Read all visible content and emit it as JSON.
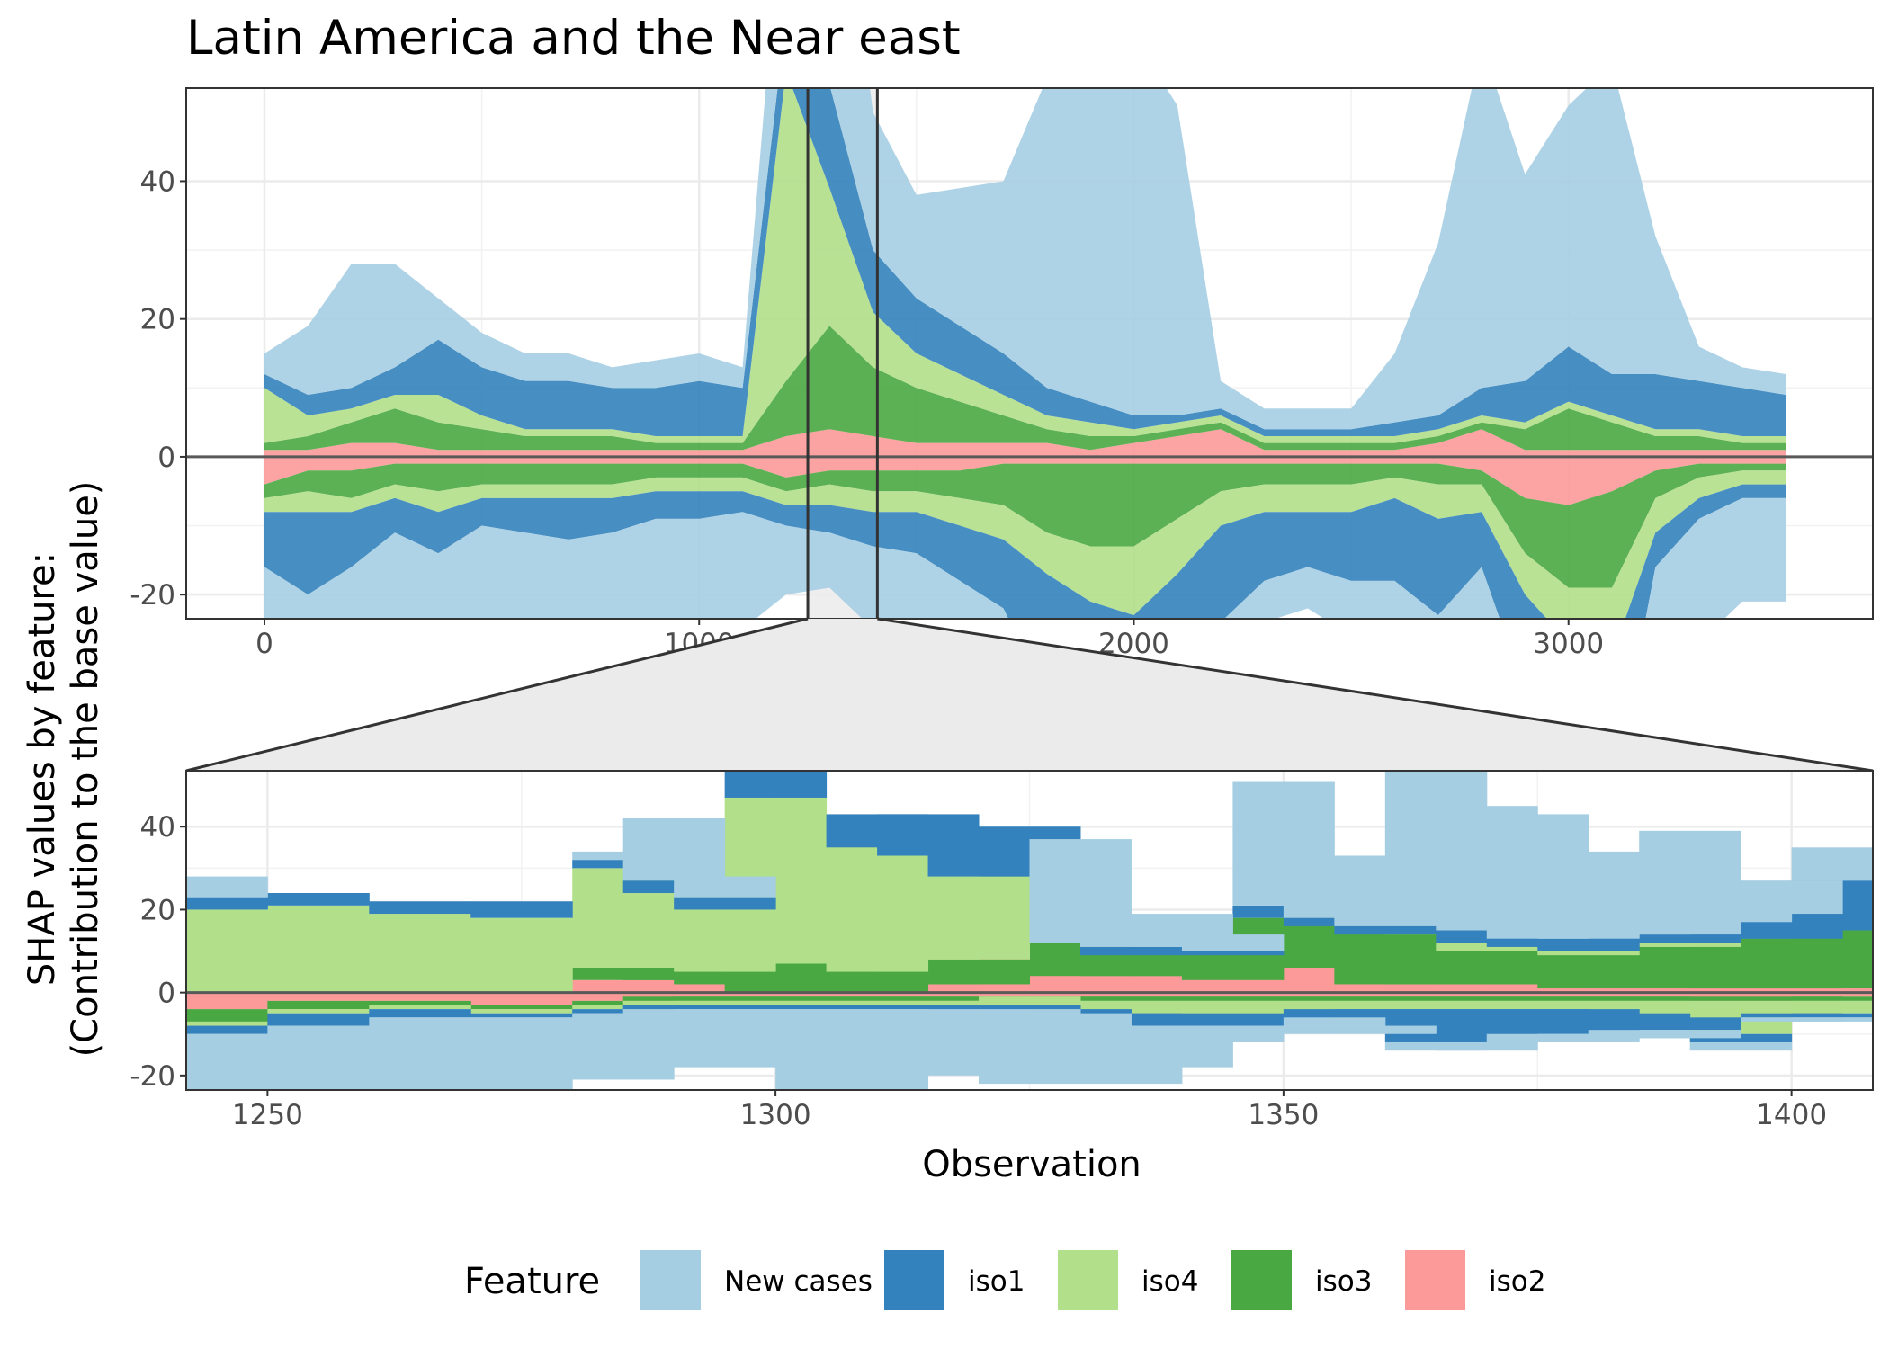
{
  "chart_data": [
    {
      "type": "area",
      "panel": "overview",
      "title": "Latin America and the Near east",
      "xlabel": "",
      "ylabel": "SHAP values by feature:\n(Contribution to the base value)",
      "xlim": [
        -180,
        3700
      ],
      "ylim": [
        -23.5,
        53.5
      ],
      "xticks": [
        0,
        1000,
        2000,
        3000
      ],
      "yticks": [
        -20,
        0,
        20,
        40
      ],
      "grid": true,
      "baseline": 0,
      "zoom_window": [
        1250,
        1410
      ],
      "series": [
        {
          "name": "New cases",
          "color": "#a6cee3",
          "x": [
            0,
            100,
            200,
            300,
            400,
            500,
            600,
            700,
            800,
            900,
            1000,
            1100,
            1200,
            1300,
            1400,
            1500,
            1600,
            1700,
            1800,
            1900,
            2000,
            2100,
            2200,
            2300,
            2400,
            2500,
            2600,
            2700,
            2800,
            2900,
            3000,
            3100,
            3200,
            3300,
            3400,
            3500
          ],
          "pos": [
            3,
            10,
            18,
            15,
            6,
            5,
            4,
            4,
            3,
            4,
            4,
            3,
            25,
            45,
            20,
            15,
            20,
            25,
            45,
            50,
            55,
            45,
            4,
            3,
            3,
            3,
            10,
            25,
            50,
            30,
            35,
            45,
            20,
            5,
            3,
            3
          ],
          "neg": [
            -20,
            -22,
            -20,
            -18,
            -16,
            -20,
            -15,
            -18,
            -16,
            -20,
            -18,
            -17,
            -10,
            -8,
            -12,
            -15,
            -12,
            -20,
            -22,
            -20,
            -18,
            -18,
            -8,
            -6,
            -6,
            -8,
            -8,
            -10,
            -12,
            -20,
            -22,
            -18,
            -20,
            -18,
            -15,
            -15
          ]
        },
        {
          "name": "iso1",
          "color": "#3382bd",
          "x": [
            0,
            100,
            200,
            300,
            400,
            500,
            600,
            700,
            800,
            900,
            1000,
            1100,
            1200,
            1300,
            1400,
            1500,
            1600,
            1700,
            1800,
            1900,
            2000,
            2100,
            2200,
            2300,
            2400,
            2500,
            2600,
            2700,
            2800,
            2900,
            3000,
            3100,
            3200,
            3300,
            3400,
            3500
          ],
          "pos": [
            2,
            3,
            3,
            4,
            8,
            7,
            7,
            7,
            6,
            7,
            8,
            7,
            8,
            15,
            9,
            8,
            7,
            6,
            4,
            3,
            2,
            1,
            1,
            1,
            1,
            1,
            2,
            2,
            4,
            6,
            8,
            6,
            8,
            7,
            7,
            6
          ],
          "neg": [
            -8,
            -12,
            -8,
            -5,
            -6,
            -4,
            -5,
            -6,
            -5,
            -4,
            -4,
            -3,
            -3,
            -4,
            -5,
            -6,
            -8,
            -10,
            -18,
            -16,
            -20,
            -18,
            -14,
            -10,
            -8,
            -10,
            -12,
            -14,
            -8,
            -14,
            -18,
            -20,
            -5,
            -3,
            -2,
            -2
          ]
        },
        {
          "name": "iso4",
          "color": "#b2df8a",
          "x": [
            0,
            100,
            200,
            300,
            400,
            500,
            600,
            700,
            800,
            900,
            1000,
            1100,
            1200,
            1300,
            1400,
            1500,
            1600,
            1700,
            1800,
            1900,
            2000,
            2100,
            2200,
            2300,
            2400,
            2500,
            2600,
            2700,
            2800,
            2900,
            3000,
            3100,
            3200,
            3300,
            3400,
            3500
          ],
          "pos": [
            8,
            3,
            2,
            2,
            4,
            2,
            1,
            1,
            1,
            1,
            1,
            1,
            45,
            20,
            8,
            5,
            4,
            3,
            2,
            2,
            1,
            1,
            1,
            1,
            1,
            1,
            1,
            1,
            1,
            1,
            1,
            1,
            1,
            1,
            1,
            1
          ],
          "neg": [
            -2,
            -3,
            -2,
            -2,
            -3,
            -2,
            -2,
            -2,
            -2,
            -2,
            -2,
            -2,
            -2,
            -3,
            -3,
            -3,
            -4,
            -5,
            -6,
            -8,
            -10,
            -8,
            -5,
            -4,
            -4,
            -4,
            -3,
            -5,
            -4,
            -6,
            -8,
            -10,
            -5,
            -3,
            -2,
            -2
          ]
        },
        {
          "name": "iso3",
          "color": "#4aa843",
          "x": [
            0,
            100,
            200,
            300,
            400,
            500,
            600,
            700,
            800,
            900,
            1000,
            1100,
            1200,
            1300,
            1400,
            1500,
            1600,
            1700,
            1800,
            1900,
            2000,
            2100,
            2200,
            2300,
            2400,
            2500,
            2600,
            2700,
            2800,
            2900,
            3000,
            3100,
            3200,
            3300,
            3400,
            3500
          ],
          "pos": [
            1,
            2,
            3,
            5,
            4,
            3,
            2,
            2,
            2,
            1,
            1,
            1,
            8,
            15,
            10,
            8,
            6,
            4,
            2,
            2,
            1,
            1,
            1,
            1,
            1,
            1,
            1,
            1,
            1,
            3,
            6,
            4,
            2,
            2,
            1,
            1
          ],
          "neg": [
            -2,
            -3,
            -4,
            -3,
            -4,
            -3,
            -3,
            -3,
            -3,
            -2,
            -2,
            -2,
            -2,
            -2,
            -3,
            -3,
            -4,
            -6,
            -10,
            -12,
            -12,
            -8,
            -4,
            -3,
            -3,
            -3,
            -2,
            -3,
            -2,
            -8,
            -12,
            -14,
            -4,
            -2,
            -1,
            -1
          ]
        },
        {
          "name": "iso2",
          "color": "#fb9a99",
          "x": [
            0,
            100,
            200,
            300,
            400,
            500,
            600,
            700,
            800,
            900,
            1000,
            1100,
            1200,
            1300,
            1400,
            1500,
            1600,
            1700,
            1800,
            1900,
            2000,
            2100,
            2200,
            2300,
            2400,
            2500,
            2600,
            2700,
            2800,
            2900,
            3000,
            3100,
            3200,
            3300,
            3400,
            3500
          ],
          "pos": [
            1,
            1,
            2,
            2,
            1,
            1,
            1,
            1,
            1,
            1,
            1,
            1,
            3,
            4,
            3,
            2,
            2,
            2,
            2,
            1,
            2,
            3,
            4,
            1,
            1,
            1,
            1,
            2,
            4,
            1,
            1,
            1,
            1,
            1,
            1,
            1
          ],
          "neg": [
            -4,
            -2,
            -2,
            -1,
            -1,
            -1,
            -1,
            -1,
            -1,
            -1,
            -1,
            -1,
            -3,
            -2,
            -2,
            -2,
            -2,
            -1,
            -1,
            -1,
            -1,
            -1,
            -1,
            -1,
            -1,
            -1,
            -1,
            -1,
            -2,
            -6,
            -7,
            -5,
            -2,
            -1,
            -1,
            -1
          ]
        }
      ]
    },
    {
      "type": "bar",
      "panel": "zoom",
      "stacked": true,
      "xlabel": "Observation",
      "ylabel": "SHAP values by feature:\n(Contribution to the base value)",
      "xlim": [
        1242,
        1408
      ],
      "ylim": [
        -23.5,
        53.5
      ],
      "xticks": [
        1250,
        1300,
        1350,
        1400
      ],
      "yticks": [
        -20,
        0,
        20,
        40
      ],
      "grid": true,
      "baseline": 0,
      "series": [
        {
          "name": "New cases",
          "color": "#a6cee3",
          "x": [
            1245,
            1255,
            1265,
            1275,
            1285,
            1290,
            1295,
            1300,
            1305,
            1310,
            1315,
            1320,
            1325,
            1330,
            1335,
            1340,
            1345,
            1350,
            1355,
            1360,
            1365,
            1370,
            1375,
            1380,
            1385,
            1390,
            1395,
            1400,
            1405
          ],
          "pos": [
            5,
            0,
            0,
            0,
            2,
            15,
            5,
            0,
            0,
            0,
            0,
            0,
            0,
            25,
            5,
            8,
            4,
            30,
            15,
            10,
            35,
            30,
            30,
            20,
            20,
            25,
            5,
            8,
            8
          ],
          "neg": [
            -22,
            -22,
            -18,
            -20,
            -16,
            -10,
            -14,
            -12,
            -20,
            -20,
            -16,
            -8,
            -18,
            -4,
            -14,
            -10,
            -4,
            -2,
            -2,
            -2,
            -2,
            -2,
            -2,
            -2,
            -2,
            -2,
            -2,
            -1,
            -1
          ]
        },
        {
          "name": "iso1",
          "color": "#3382bd",
          "x": [
            1245,
            1255,
            1265,
            1275,
            1285,
            1290,
            1295,
            1300,
            1305,
            1310,
            1315,
            1320,
            1325,
            1330,
            1335,
            1340,
            1345,
            1350,
            1355,
            1360,
            1365,
            1370,
            1375,
            1380,
            1385,
            1390,
            1395,
            1400,
            1405
          ],
          "pos": [
            3,
            3,
            3,
            4,
            2,
            3,
            3,
            12,
            0,
            8,
            10,
            6,
            12,
            0,
            2,
            1,
            1,
            3,
            2,
            2,
            4,
            3,
            2,
            3,
            2,
            2,
            4,
            6,
            12
          ],
          "neg": [
            -2,
            -3,
            -2,
            -1,
            -1,
            -1,
            -1,
            -1,
            -1,
            -1,
            -1,
            -2,
            -1,
            -1,
            -3,
            -3,
            -2,
            -3,
            -2,
            -4,
            -8,
            -8,
            -6,
            -6,
            -4,
            -3,
            -2,
            -1,
            -1
          ]
        },
        {
          "name": "iso4",
          "color": "#b2df8a",
          "x": [
            1245,
            1255,
            1265,
            1275,
            1285,
            1290,
            1295,
            1300,
            1305,
            1310,
            1315,
            1320,
            1325,
            1330,
            1335,
            1340,
            1345,
            1350,
            1355,
            1360,
            1365,
            1370,
            1375,
            1380,
            1385,
            1390,
            1395,
            1400,
            1405
          ],
          "pos": [
            20,
            21,
            19,
            18,
            24,
            18,
            15,
            40,
            35,
            30,
            25,
            20,
            0,
            0,
            0,
            0,
            0,
            0,
            0,
            0,
            2,
            2,
            1,
            1,
            1,
            1,
            0,
            0,
            0
          ],
          "neg": [
            -1,
            -1,
            -1,
            -1,
            -1,
            -1,
            -1,
            -1,
            -1,
            -1,
            -1,
            -1,
            -2,
            -2,
            -3,
            -3,
            -4,
            -3,
            -2,
            -2,
            -2,
            -2,
            -2,
            -2,
            -3,
            -4,
            -6,
            -3,
            -3
          ]
        },
        {
          "name": "iso3",
          "color": "#4aa843",
          "x": [
            1245,
            1255,
            1265,
            1275,
            1285,
            1290,
            1295,
            1300,
            1305,
            1310,
            1315,
            1320,
            1325,
            1330,
            1335,
            1340,
            1345,
            1350,
            1355,
            1360,
            1365,
            1370,
            1375,
            1380,
            1385,
            1390,
            1395,
            1400,
            1405
          ],
          "pos": [
            0,
            0,
            0,
            0,
            3,
            3,
            3,
            7,
            7,
            5,
            6,
            6,
            10,
            8,
            5,
            6,
            6,
            12,
            10,
            12,
            12,
            8,
            8,
            8,
            9,
            10,
            12,
            12,
            14
          ],
          "neg": [
            -3,
            -2,
            -1,
            -1,
            -1,
            -1,
            -1,
            -1,
            -1,
            -1,
            -1,
            -1,
            0,
            -1,
            -1,
            -1,
            -1,
            -1,
            -1,
            -1,
            -1,
            -1,
            -1,
            -1,
            -1,
            -1,
            -1,
            -1,
            -1
          ]
        },
        {
          "name": "iso2",
          "color": "#fb9a99",
          "x": [
            1245,
            1255,
            1265,
            1275,
            1285,
            1290,
            1295,
            1300,
            1305,
            1310,
            1315,
            1320,
            1325,
            1330,
            1335,
            1340,
            1345,
            1350,
            1355,
            1360,
            1365,
            1370,
            1375,
            1380,
            1385,
            1390,
            1395,
            1400,
            1405
          ],
          "pos": [
            0,
            0,
            0,
            0,
            3,
            3,
            2,
            0,
            0,
            0,
            2,
            2,
            18,
            4,
            4,
            4,
            3,
            6,
            6,
            2,
            2,
            2,
            2,
            1,
            2,
            1,
            1,
            1,
            1
          ],
          "neg": [
            -4,
            -2,
            -2,
            -3,
            -2,
            -1,
            -1,
            -1,
            -1,
            -1,
            -1,
            -1,
            -1,
            -1,
            -1,
            -1,
            -1,
            -1,
            -1,
            -1,
            -1,
            -1,
            -1,
            -1,
            -1,
            -1,
            -3,
            -1,
            -1
          ]
        }
      ]
    }
  ],
  "legend": {
    "title": "Feature",
    "position": "bottom",
    "items": [
      {
        "label": "New cases",
        "color": "#a6cee3"
      },
      {
        "label": "iso1",
        "color": "#3382bd"
      },
      {
        "label": "iso4",
        "color": "#b2df8a"
      },
      {
        "label": "iso3",
        "color": "#4aa843"
      },
      {
        "label": "iso2",
        "color": "#fb9a99"
      }
    ]
  }
}
